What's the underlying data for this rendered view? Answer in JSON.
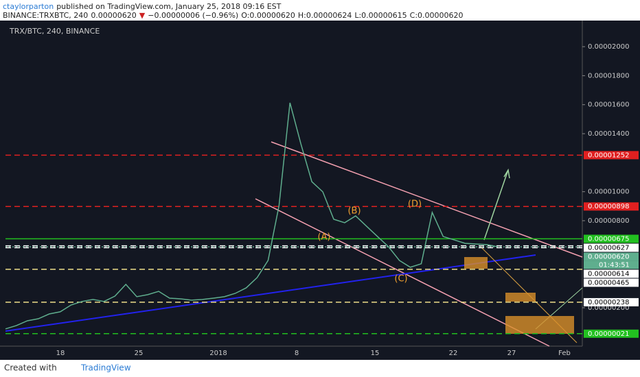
{
  "header": {
    "user": "ctaylorparton",
    "published": "published on TradingView.com, January 25, 2018 09:16 EST",
    "symbol": "BINANCE:TRXBTC, 240",
    "last": "0.00000620",
    "change": "−0.00000006 (−0.96%)",
    "open": "O:0.00000620",
    "high": "H:0.00000624",
    "low": "L:0.00000615",
    "close": "C:0.00000620"
  },
  "chart_data": {
    "type": "line",
    "title": "TRX/BTC, 240, BINANCE",
    "series": [
      {
        "name": "TRX/BTC",
        "color": "#5fae8e",
        "values": [
          5.4e-07,
          7.7e-07,
          1.1e-06,
          1.24e-06,
          1.57e-06,
          1.72e-06,
          2.19e-06,
          2.43e-06,
          2.57e-06,
          2.43e-06,
          2.8e-06,
          3.61e-06,
          2.76e-06,
          2.9e-06,
          3.13e-06,
          2.66e-06,
          2.61e-06,
          2.52e-06,
          2.57e-06,
          2.66e-06,
          2.76e-06,
          2.99e-06,
          3.37e-06,
          4.08e-06,
          5.26e-06,
          9.04e-06,
          1.613e-05,
          1.329e-05,
          1.069e-05,
          9.99e-06,
          8.1e-06,
          7.86e-06,
          8.33e-06,
          7.62e-06,
          6.91e-06,
          6.21e-06,
          5.26e-06,
          4.79e-06,
          5.03e-06,
          8.57e-06,
          6.91e-06,
          6.68e-06,
          6.44e-06,
          6.39e-06,
          6.35e-06,
          6.2e-06
        ]
      }
    ],
    "ylim": [
      -6.5e-07,
      2.18e-05
    ],
    "yticks": [
      {
        "value": 2e-06,
        "label": "0.00000200"
      },
      {
        "value": 8e-06,
        "label": "0.00000800"
      },
      {
        "value": 1e-05,
        "label": "0.00001000"
      },
      {
        "value": 1.4e-05,
        "label": "0.00001400"
      },
      {
        "value": 1.6e-05,
        "label": "0.00001600"
      },
      {
        "value": 1.8e-05,
        "label": "0.00001800"
      },
      {
        "value": 2e-05,
        "label": "0.00002000"
      }
    ],
    "xticks": [
      "18",
      "25",
      "2018",
      "8",
      "15",
      "22",
      "27",
      "Feb"
    ],
    "levels": [
      {
        "value": 1.252e-05,
        "label": "0.00001252",
        "color": "#e02020",
        "style": "dashed"
      },
      {
        "value": 8.98e-06,
        "label": "0.00000898",
        "color": "#e02020",
        "style": "dashed"
      },
      {
        "value": 6.75e-06,
        "label": "0.00000675",
        "color": "#22c020",
        "style": "solid"
      },
      {
        "value": 6.27e-06,
        "label": "0.00000627",
        "color": "#ffffff",
        "style": "dashed"
      },
      {
        "value": 6.2e-06,
        "label": "0.00000620",
        "color": "#5fae8e",
        "style": "dotted"
      },
      {
        "value": 6.14e-06,
        "label": "0.00000614",
        "color": "#ffffff",
        "style": "dashed"
      },
      {
        "value": 4.65e-06,
        "label": "0.00000465",
        "color": "#f0e08a",
        "style": "dashed"
      },
      {
        "value": 2.38e-06,
        "label": "0.00000238",
        "color": "#f0e08a",
        "style": "dashed"
      },
      {
        "value": 2.1e-07,
        "label": "0.00000021",
        "color": "#22c020",
        "style": "dashed"
      }
    ],
    "countdown": "01:43:51",
    "annotations": [
      "(A)",
      "(B)",
      "(C)",
      "(D)"
    ]
  },
  "footer": {
    "created": "Created with",
    "brand": "TradingView"
  }
}
